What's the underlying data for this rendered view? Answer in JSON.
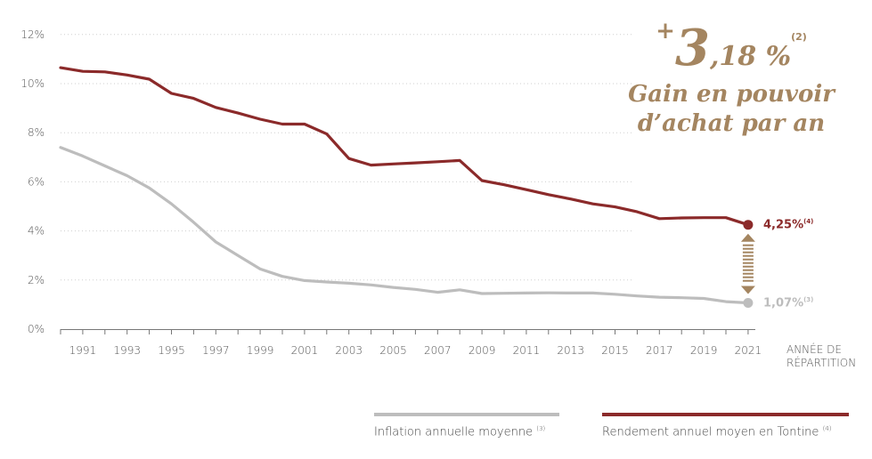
{
  "chart_data": {
    "type": "line",
    "x": [
      1990,
      1991,
      1992,
      1993,
      1994,
      1995,
      1996,
      1997,
      1998,
      1999,
      2000,
      2001,
      2002,
      2003,
      2004,
      2005,
      2006,
      2007,
      2008,
      2009,
      2010,
      2011,
      2012,
      2013,
      2014,
      2015,
      2016,
      2017,
      2018,
      2019,
      2020,
      2021
    ],
    "x_ticks": [
      "1991",
      "1993",
      "1995",
      "1997",
      "1999",
      "2001",
      "2003",
      "2005",
      "2007",
      "2009",
      "2011",
      "2013",
      "2015",
      "2017",
      "2019",
      "2021"
    ],
    "y_ticks": [
      "0%",
      "2%",
      "4%",
      "6%",
      "8%",
      "10%",
      "12%"
    ],
    "ylim": [
      0,
      12
    ],
    "xlabel": "ANNÉE DE RÉPARTITION",
    "grid": "dotted horizontal",
    "legend_position": "bottom-right",
    "series": [
      {
        "name": "Inflation annuelle moyenne",
        "note": "(3)",
        "color": "#bdbdbd",
        "values": [
          7.4,
          7.05,
          6.65,
          6.25,
          5.75,
          5.1,
          4.35,
          3.55,
          3.0,
          2.45,
          2.15,
          1.98,
          1.92,
          1.87,
          1.8,
          1.7,
          1.62,
          1.5,
          1.6,
          1.45,
          1.46,
          1.47,
          1.48,
          1.47,
          1.47,
          1.42,
          1.35,
          1.3,
          1.28,
          1.25,
          1.12,
          1.07
        ],
        "end_label": "1,07%",
        "end_note": "(3)"
      },
      {
        "name": "Rendement annuel moyen en Tontine",
        "note": "(4)",
        "color": "#8b2a2a",
        "values": [
          10.65,
          10.5,
          10.48,
          10.35,
          10.18,
          9.6,
          9.4,
          9.03,
          8.8,
          8.55,
          8.35,
          8.35,
          7.95,
          6.95,
          6.68,
          6.73,
          6.77,
          6.82,
          6.87,
          6.05,
          5.88,
          5.68,
          5.48,
          5.3,
          5.1,
          4.98,
          4.78,
          4.5,
          4.53,
          4.54,
          4.54,
          4.25
        ],
        "end_label": "4,25%",
        "end_note": "(4)"
      }
    ],
    "callout": {
      "plus": "+",
      "value_int": "3",
      "value_dec": ",18 %",
      "note": "(2)",
      "line1": "Gain en pouvoir",
      "line2": "d’achat par an"
    },
    "arrow_color": "#a48560"
  }
}
